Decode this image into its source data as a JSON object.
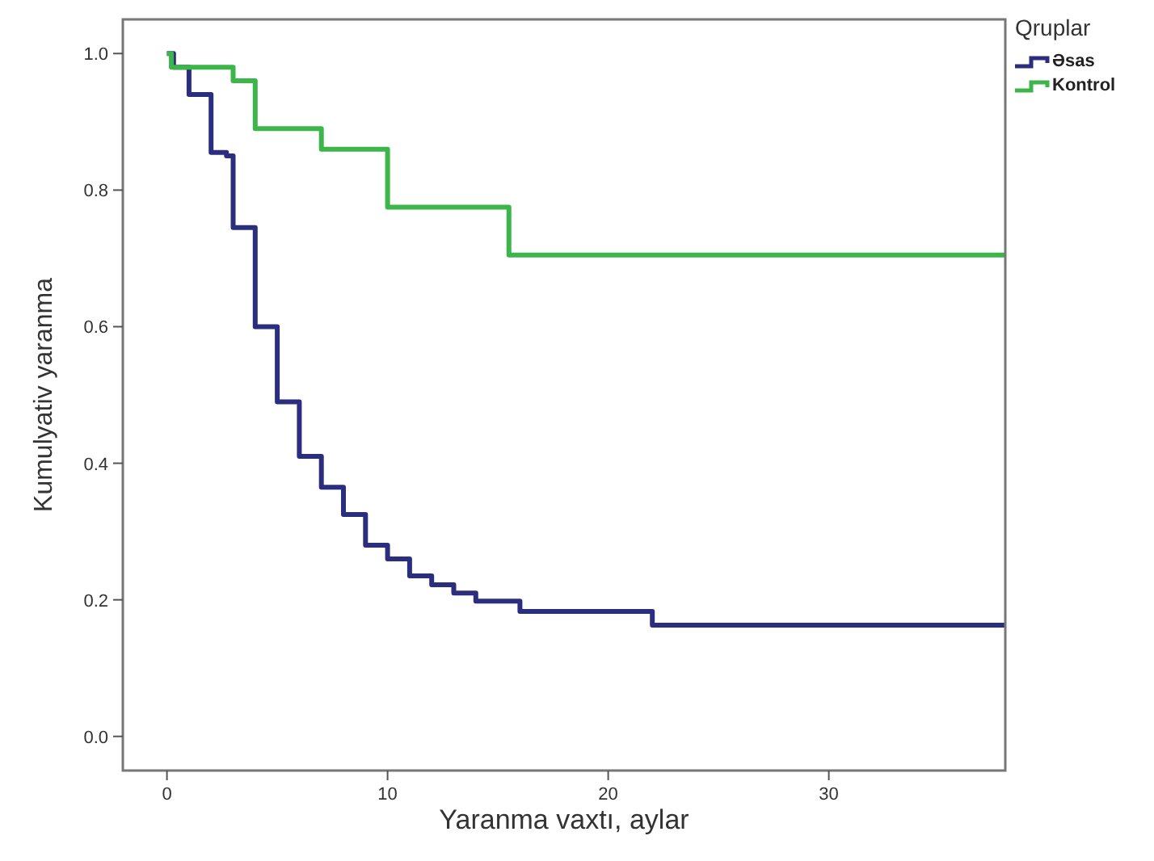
{
  "chart_data": {
    "type": "step",
    "xlabel": "Yaranma vaxtı, aylar",
    "ylabel": "Kumulyativ yaranma",
    "legend_title": "Qruplar",
    "legend": "top right",
    "grid": false,
    "line_style": "solid",
    "xlim": [
      -2,
      38
    ],
    "xticks": [
      0,
      10,
      20,
      30
    ],
    "ylim": [
      -0.05,
      1.05
    ],
    "yticks": [
      {
        "value": 0,
        "label": "0.0"
      },
      {
        "value": 0.2,
        "label": "0.2"
      },
      {
        "value": 0.4,
        "label": "0.4"
      },
      {
        "value": 0.6,
        "label": "0.6"
      },
      {
        "value": 0.8,
        "label": "0.8"
      },
      {
        "value": 1,
        "label": "1.0"
      }
    ],
    "series": [
      {
        "name": "Əsas",
        "color": "#2b2e7f",
        "x": [
          0,
          0.3,
          1,
          2,
          2.7,
          3,
          4,
          5,
          6,
          7,
          8,
          9,
          10,
          11,
          12,
          13,
          14,
          16,
          22,
          38
        ],
        "values": [
          1,
          0.98,
          0.94,
          0.855,
          0.85,
          0.745,
          0.6,
          0.49,
          0.41,
          0.365,
          0.325,
          0.28,
          0.26,
          0.235,
          0.222,
          0.21,
          0.198,
          0.183,
          0.163,
          0.163
        ]
      },
      {
        "name": "Kontrol",
        "color": "#3cb54a",
        "x": [
          0,
          0.2,
          3,
          4,
          7,
          10,
          15.5,
          38
        ],
        "values": [
          1,
          0.98,
          0.96,
          0.89,
          0.86,
          0.775,
          0.705,
          0.705
        ]
      }
    ]
  }
}
